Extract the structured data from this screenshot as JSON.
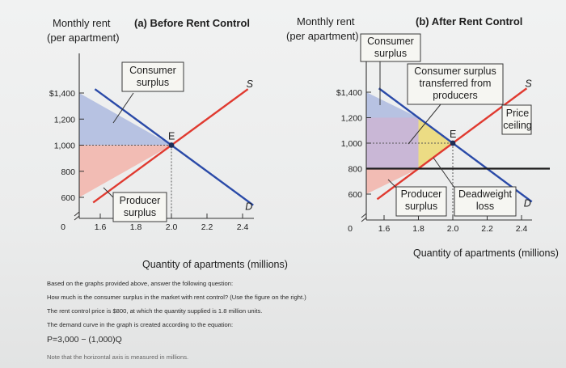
{
  "chart_data": [
    {
      "type": "line",
      "panel": "(a) Before Rent Control",
      "title": "(a) Before Rent Control",
      "ylabel": "Monthly rent (per apartment)",
      "xlabel": "Quantity of apartments (millions)",
      "x_ticks": [
        "1.6",
        "1.8",
        "2.0",
        "2.2",
        "2.4"
      ],
      "y_ticks": [
        "$1,400",
        "1,200",
        "1,000",
        "800",
        "600"
      ],
      "origin_label": "0",
      "xlim": [
        1.6,
        2.4
      ],
      "ylim": [
        600,
        1400
      ],
      "series": [
        {
          "name": "S",
          "x": [
            1.6,
            2.4
          ],
          "y": [
            600,
            1400
          ],
          "color": "#e03a30"
        },
        {
          "name": "D",
          "x": [
            1.6,
            2.4
          ],
          "y": [
            1400,
            600
          ],
          "color": "#2a4aa8"
        }
      ],
      "equilibrium": {
        "label": "E",
        "x": 2.0,
        "y": 1000
      },
      "regions": [
        {
          "label": "Consumer surplus",
          "color": "#b7c2e2"
        },
        {
          "label": "Producer surplus",
          "color": "#f2bcb4"
        }
      ]
    },
    {
      "type": "line",
      "panel": "(b) After Rent Control",
      "title": "(b) After Rent Control",
      "ylabel": "Monthly rent (per apartment)",
      "xlabel": "Quantity of apartments (millions)",
      "x_ticks": [
        "1.6",
        "1.8",
        "2.0",
        "2.2",
        "2.4"
      ],
      "y_ticks": [
        "$1,400",
        "1,200",
        "1,000",
        "800",
        "600"
      ],
      "origin_label": "0",
      "xlim": [
        1.6,
        2.4
      ],
      "ylim": [
        600,
        1400
      ],
      "series": [
        {
          "name": "S",
          "x": [
            1.6,
            2.4
          ],
          "y": [
            600,
            1400
          ],
          "color": "#e03a30"
        },
        {
          "name": "D",
          "x": [
            1.6,
            2.4
          ],
          "y": [
            1400,
            600
          ],
          "color": "#2a4aa8"
        }
      ],
      "price_ceiling": {
        "label": "Price ceiling",
        "y": 800
      },
      "equilibrium": {
        "label": "E",
        "x": 2.0,
        "y": 1000
      },
      "regions": [
        {
          "label": "Consumer surplus",
          "color": "#b7c2e2"
        },
        {
          "label": "Consumer surplus transferred from producers",
          "color": "#c9b7d6"
        },
        {
          "label": "Producer surplus",
          "color": "#f2bcb4"
        },
        {
          "label": "Deadweight loss",
          "color": "#ecdc84"
        }
      ]
    }
  ],
  "question": {
    "line1": "Based on the graphs provided above, answer the following question:",
    "line2": "How much is the consumer surplus in the market with rent control? (Use the figure on the right.)",
    "line3": "The rent control price is $800, at which the quantity supplied is 1.8 million units.",
    "line4": "The demand curve in the graph is created according to the equation:",
    "equation": "P=3,000 − (1,000)Q",
    "note": "Note that the horizontal axis is measured in millions."
  }
}
